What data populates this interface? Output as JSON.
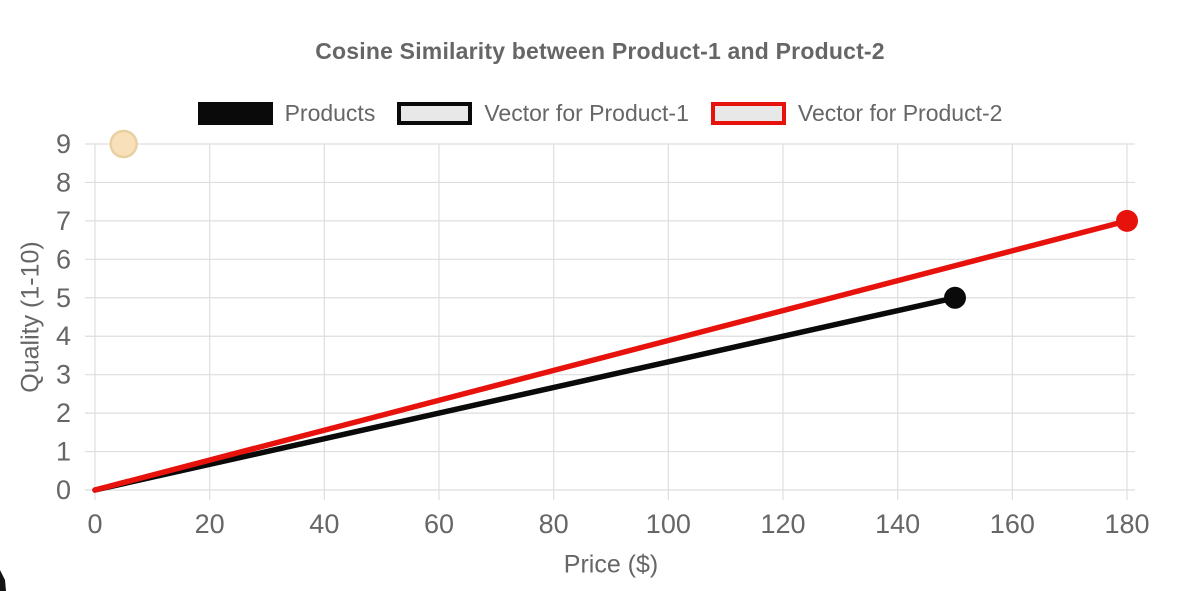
{
  "title": "Cosine Similarity between Product-1 and Product-2",
  "legend": [
    {
      "label": "Products",
      "box_fill": "#0a0a0a",
      "box_border": "#0a0a0a"
    },
    {
      "label": "Vector for Product-1",
      "box_fill": "#e8e8e8",
      "box_border": "#0a0a0a"
    },
    {
      "label": "Vector for Product-2",
      "box_fill": "#e8e8e8",
      "box_border": "#e8120c"
    }
  ],
  "chart_data": {
    "type": "line",
    "title": "Cosine Similarity between Product-1 and Product-2",
    "xlabel": "Price ($)",
    "ylabel": "Quality (1-10)",
    "xlim": [
      0,
      180
    ],
    "ylim": [
      0,
      9
    ],
    "x_ticks": [
      0,
      20,
      40,
      60,
      80,
      100,
      120,
      140,
      160,
      180
    ],
    "y_ticks": [
      0,
      1,
      2,
      3,
      4,
      5,
      6,
      7,
      8,
      9
    ],
    "grid": true,
    "legend_position": "top",
    "series": [
      {
        "name": "Vector for Product-1",
        "kind": "vector-line",
        "points": [
          [
            0,
            0
          ],
          [
            150,
            5
          ]
        ],
        "color": "#0a0a0a",
        "line_width": 5.5,
        "end_marker_radius": 11
      },
      {
        "name": "Vector for Product-2",
        "kind": "vector-line",
        "points": [
          [
            0,
            0
          ],
          [
            180,
            7
          ]
        ],
        "color": "#e8120c",
        "line_width": 5.5,
        "end_marker_radius": 11
      },
      {
        "name": "Products",
        "kind": "scatter",
        "points": [
          [
            5,
            9
          ]
        ],
        "color": "#f8e0ba",
        "border_color": "#e9d0a0",
        "marker_radius": 13
      }
    ]
  },
  "colors": {
    "text": "#666666",
    "grid": "#dedede",
    "background": "#ffffff"
  }
}
